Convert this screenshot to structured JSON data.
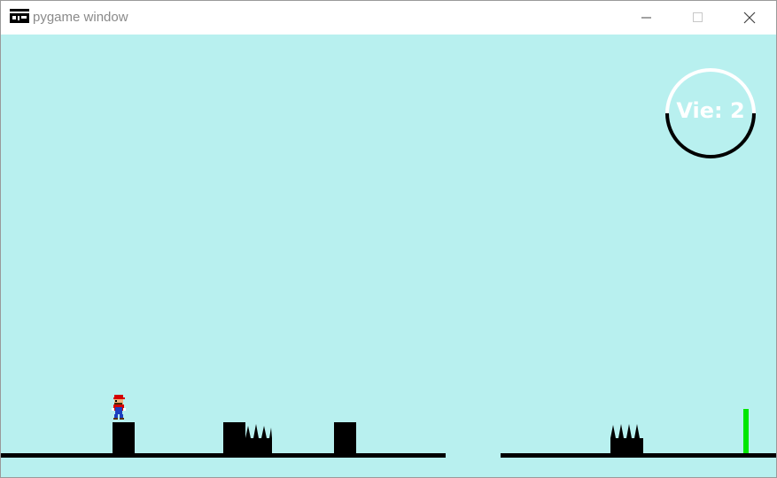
{
  "window": {
    "title": "pygame window",
    "icon": "pygame-icon",
    "controls": [
      "minimize-icon",
      "maximize-icon",
      "close-icon"
    ]
  },
  "hud": {
    "lives_text": "Vie: 2"
  },
  "colors": {
    "sky": "#b8f0ef",
    "ground": "#000000",
    "goal": "#00e600",
    "hud_text": "#ffffff"
  },
  "entities": {
    "player": "mario-sprite",
    "obstacles": [
      "block",
      "block",
      "spikes",
      "block",
      "spikes"
    ],
    "goal": "goal-flag"
  }
}
